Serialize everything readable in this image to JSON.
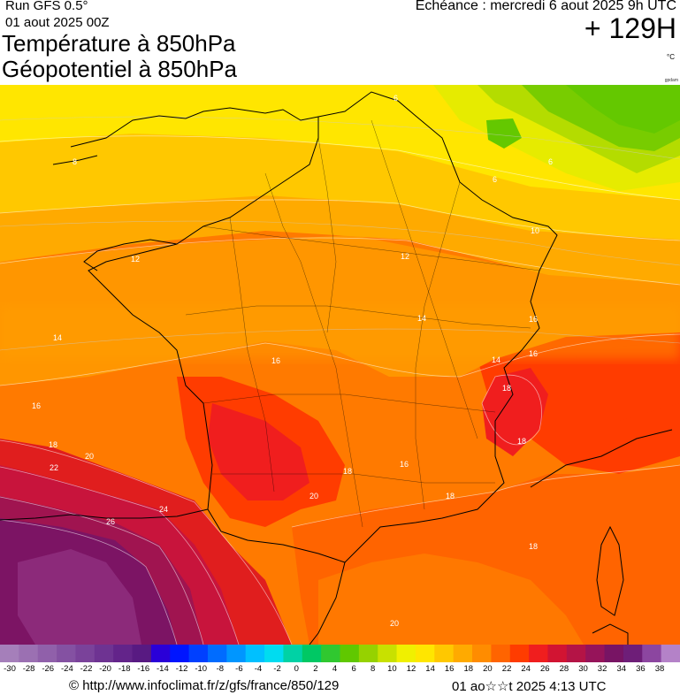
{
  "header": {
    "run": "Run GFS 0.5°",
    "run_date": "01 aout 2025 00Z",
    "title_line1": "Température à 850hPa",
    "title_line2": "Géopotentiel à 850hPa",
    "echeance": "Echéance : mercredi 6 aout 2025 9h UTC",
    "lead_time": "+ 129H",
    "unit": "°C",
    "credit": "gpdam"
  },
  "map": {
    "region": "France",
    "contour_labels": [
      "6",
      "6",
      "6",
      "8",
      "10",
      "12",
      "12",
      "14",
      "14",
      "14",
      "16",
      "16",
      "16",
      "16",
      "16",
      "18",
      "18",
      "18",
      "18",
      "18",
      "18",
      "20",
      "20",
      "20",
      "22",
      "24",
      "26"
    ]
  },
  "legend": {
    "ticks": [
      "-30",
      "-28",
      "-26",
      "-24",
      "-22",
      "-20",
      "-18",
      "-16",
      "-14",
      "-12",
      "-10",
      "-8",
      "-6",
      "-4",
      "-2",
      "0",
      "2",
      "4",
      "6",
      "8",
      "10",
      "12",
      "14",
      "16",
      "18",
      "20",
      "22",
      "24",
      "26",
      "28",
      "30",
      "32",
      "34",
      "36",
      "38"
    ],
    "colors": [
      "#a57fba",
      "#9b70b2",
      "#9060aa",
      "#8451a2",
      "#7a429a",
      "#6e3392",
      "#63248a",
      "#581a82",
      "#2a00d8",
      "#0015ff",
      "#0040ff",
      "#006cff",
      "#0096ff",
      "#00c0ff",
      "#00dcf0",
      "#00d2a5",
      "#00c864",
      "#30c830",
      "#60c800",
      "#96d200",
      "#c8e100",
      "#f0f000",
      "#ffe600",
      "#ffc800",
      "#ffaa00",
      "#ff8c00",
      "#ff6400",
      "#ff3c00",
      "#f01e1e",
      "#d21432",
      "#b41446",
      "#96145a",
      "#781464",
      "#6e1e78",
      "#8c46a0",
      "#b482c8"
    ]
  },
  "footer": {
    "url": "© http://www.infoclimat.fr/z/gfs/france/850/129",
    "generated": "01 ao☆☆t 2025  4:13 UTC"
  }
}
